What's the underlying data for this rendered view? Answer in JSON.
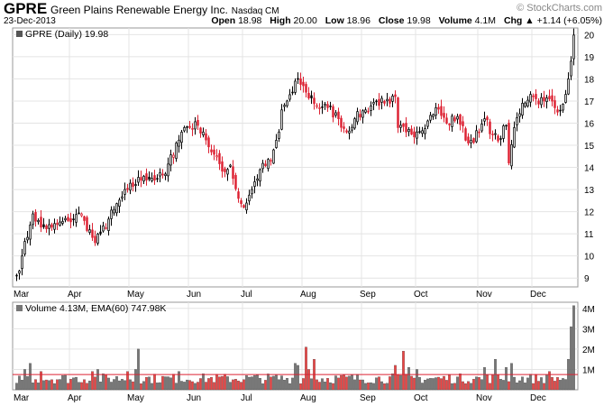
{
  "header": {
    "symbol": "GPRE",
    "company": "Green Plains Renewable Energy Inc.",
    "exchange": "Nasdaq CM",
    "date": "23-Dec-2013",
    "brand": "© StockCharts.com",
    "open_label": "Open",
    "open": "18.98",
    "high_label": "High",
    "high": "20.00",
    "low_label": "Low",
    "low": "18.96",
    "close_label": "Close",
    "close": "19.98",
    "volume_label": "Volume",
    "volume": "4.1M",
    "chg_label": "Chg",
    "chg": "+1.14 (+6.05%)",
    "chg_arrow": "▲"
  },
  "colors": {
    "up": "#000000",
    "down": "#dd2233",
    "vol_up": "#777777",
    "vol_down": "#ee4444",
    "ema": "#dd2233",
    "grid": "#e4e4e4"
  },
  "chart_data": [
    {
      "type": "candlestick",
      "legend": "GPRE (Daily) 19.98",
      "y_ticks": [
        9,
        10,
        11,
        12,
        13,
        14,
        15,
        16,
        17,
        18,
        19,
        20
      ],
      "ylim": [
        8.6,
        20.3
      ],
      "x_ticks": [
        "Mar",
        "Apr",
        "May",
        "Jun",
        "Jul",
        "Aug",
        "Sep",
        "Oct",
        "Nov",
        "Dec"
      ],
      "anchors": [
        [
          "2013-03-01",
          9.1
        ],
        [
          "2013-03-05",
          10.0
        ],
        [
          "2013-03-08",
          11.4
        ],
        [
          "2013-03-11",
          11.9
        ],
        [
          "2013-03-14",
          11.3
        ],
        [
          "2013-03-20",
          11.3
        ],
        [
          "2013-03-28",
          11.6
        ],
        [
          "2013-04-05",
          11.9
        ],
        [
          "2013-04-08",
          11.6
        ],
        [
          "2013-04-12",
          10.6
        ],
        [
          "2013-04-16",
          11.0
        ],
        [
          "2013-04-23",
          12.1
        ],
        [
          "2013-04-30",
          13.0
        ],
        [
          "2013-05-08",
          13.6
        ],
        [
          "2013-05-15",
          13.5
        ],
        [
          "2013-05-20",
          13.7
        ],
        [
          "2013-05-24",
          15.1
        ],
        [
          "2013-05-30",
          15.8
        ],
        [
          "2013-06-06",
          15.9
        ],
        [
          "2013-06-10",
          15.6
        ],
        [
          "2013-06-13",
          14.7
        ],
        [
          "2013-06-20",
          13.8
        ],
        [
          "2013-06-24",
          14.1
        ],
        [
          "2013-06-27",
          12.6
        ],
        [
          "2013-07-01",
          12.2
        ],
        [
          "2013-07-05",
          13.0
        ],
        [
          "2013-07-10",
          13.9
        ],
        [
          "2013-07-16",
          14.3
        ],
        [
          "2013-07-19",
          15.6
        ],
        [
          "2013-07-22",
          16.6
        ],
        [
          "2013-07-26",
          17.4
        ],
        [
          "2013-07-30",
          18.0
        ],
        [
          "2013-08-02",
          17.4
        ],
        [
          "2013-08-08",
          16.8
        ],
        [
          "2013-08-14",
          16.7
        ],
        [
          "2013-08-20",
          16.2
        ],
        [
          "2013-08-23",
          15.6
        ],
        [
          "2013-08-28",
          16.2
        ],
        [
          "2013-09-04",
          16.6
        ],
        [
          "2013-09-10",
          17.0
        ],
        [
          "2013-09-13",
          16.9
        ],
        [
          "2013-09-17",
          16.9
        ],
        [
          "2013-09-19",
          17.2
        ],
        [
          "2013-09-20",
          15.8
        ],
        [
          "2013-09-25",
          15.6
        ],
        [
          "2013-10-01",
          15.6
        ],
        [
          "2013-10-07",
          16.1
        ],
        [
          "2013-10-10",
          16.7
        ],
        [
          "2013-10-16",
          16.0
        ],
        [
          "2013-10-22",
          16.3
        ],
        [
          "2013-10-28",
          15.1
        ],
        [
          "2013-11-01",
          15.6
        ],
        [
          "2013-11-05",
          16.2
        ],
        [
          "2013-11-08",
          15.5
        ],
        [
          "2013-11-12",
          15.2
        ],
        [
          "2013-11-15",
          15.9
        ],
        [
          "2013-11-18",
          14.2
        ],
        [
          "2013-11-20",
          15.8
        ],
        [
          "2013-11-25",
          16.9
        ],
        [
          "2013-11-29",
          17.3
        ],
        [
          "2013-12-03",
          17.1
        ],
        [
          "2013-12-06",
          17.0
        ],
        [
          "2013-12-10",
          17.1
        ],
        [
          "2013-12-13",
          16.5
        ],
        [
          "2013-12-18",
          17.3
        ],
        [
          "2013-12-19",
          18.0
        ],
        [
          "2013-12-20",
          18.8
        ],
        [
          "2013-12-23",
          19.98
        ]
      ]
    },
    {
      "type": "bar",
      "legend": "Volume 4.13M, EMA(60) 747.98K",
      "y_ticks": [
        "1M",
        "2M",
        "3M",
        "4M"
      ],
      "ylim": [
        0,
        4.3
      ],
      "x_ticks": [
        "Mar",
        "Apr",
        "May",
        "Jun",
        "Jul",
        "Aug",
        "Sep",
        "Oct",
        "Nov",
        "Dec"
      ],
      "ema_value_millions": 0.75,
      "spikes": [
        [
          "2013-03-06",
          1.0
        ],
        [
          "2013-03-08",
          1.3
        ],
        [
          "2013-03-14",
          0.9
        ],
        [
          "2013-04-11",
          0.9
        ],
        [
          "2013-04-15",
          1.0
        ],
        [
          "2013-04-30",
          0.9
        ],
        [
          "2013-05-03",
          1.0
        ],
        [
          "2013-05-06",
          2.0
        ],
        [
          "2013-05-28",
          0.9
        ],
        [
          "2013-07-29",
          1.3
        ],
        [
          "2013-07-30",
          1.2
        ],
        [
          "2013-08-02",
          2.1
        ],
        [
          "2013-08-05",
          1.0
        ],
        [
          "2013-08-07",
          1.5
        ],
        [
          "2013-09-19",
          1.2
        ],
        [
          "2013-09-24",
          1.9
        ],
        [
          "2013-09-26",
          1.1
        ],
        [
          "2013-10-01",
          1.0
        ],
        [
          "2013-11-05",
          1.1
        ],
        [
          "2013-11-11",
          1.5
        ],
        [
          "2013-11-15",
          1.1
        ],
        [
          "2013-11-19",
          1.3
        ],
        [
          "2013-12-10",
          0.9
        ],
        [
          "2013-12-19",
          1.5
        ],
        [
          "2013-12-20",
          3.1
        ],
        [
          "2013-12-23",
          4.13
        ]
      ]
    }
  ]
}
